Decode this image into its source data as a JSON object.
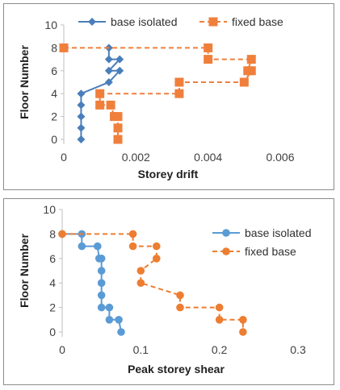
{
  "chart_data": [
    {
      "type": "line",
      "xlabel": "Storey drift",
      "ylabel": "Floor Number",
      "xlim": [
        0,
        0.006
      ],
      "ylim": [
        0,
        10
      ],
      "xticks": [
        "0",
        "0.002",
        "0.004",
        "0.006"
      ],
      "yticks": [
        "0",
        "2",
        "4",
        "6",
        "8",
        "10"
      ],
      "grid": false,
      "legend_position": "top-right",
      "series": [
        {
          "name": "base isolated",
          "color": "#4a7ebb",
          "marker": "diamond",
          "line": "solid",
          "points": [
            [
              0.00125,
              8
            ],
            [
              0.00125,
              7
            ],
            [
              0.00155,
              7
            ],
            [
              0.00125,
              6
            ],
            [
              0.00155,
              6
            ],
            [
              0.00125,
              5
            ],
            [
              0.00048,
              4
            ],
            [
              0.00048,
              3
            ],
            [
              0.00048,
              2
            ],
            [
              0.00048,
              1
            ],
            [
              0.00048,
              0
            ]
          ]
        },
        {
          "name": "fixed base",
          "color": "#f07f3c",
          "marker": "square",
          "line": "dashed",
          "points": [
            [
              0,
              8
            ],
            [
              0.004,
              8
            ],
            [
              0.004,
              7
            ],
            [
              0.0052,
              7
            ],
            [
              0.0051,
              6
            ],
            [
              0.0052,
              6
            ],
            [
              0.005,
              5
            ],
            [
              0.0032,
              5
            ],
            [
              0.0032,
              4
            ],
            [
              0.001,
              4
            ],
            [
              0.001,
              3
            ],
            [
              0.0013,
              3
            ],
            [
              0.0014,
              2
            ],
            [
              0.0015,
              2
            ],
            [
              0.0015,
              1
            ],
            [
              0.0015,
              0
            ]
          ]
        }
      ]
    },
    {
      "type": "line",
      "xlabel": "Peak storey shear",
      "ylabel": "Floor Number",
      "xlim": [
        0,
        0.3
      ],
      "ylim": [
        0,
        10
      ],
      "xticks": [
        "0",
        "0.1",
        "0.2",
        "0.3"
      ],
      "yticks": [
        "0",
        "2",
        "4",
        "6",
        "8",
        "10"
      ],
      "grid": false,
      "legend_position": "right",
      "series": [
        {
          "name": "base isolated",
          "color": "#5b9bd5",
          "marker": "circle",
          "line": "solid",
          "points": [
            [
              0,
              8
            ],
            [
              0.025,
              8
            ],
            [
              0.025,
              7
            ],
            [
              0.045,
              7
            ],
            [
              0.047,
              6
            ],
            [
              0.05,
              6
            ],
            [
              0.05,
              5
            ],
            [
              0.05,
              4
            ],
            [
              0.05,
              3
            ],
            [
              0.05,
              2
            ],
            [
              0.06,
              2
            ],
            [
              0.06,
              1
            ],
            [
              0.072,
              1
            ],
            [
              0.075,
              0
            ]
          ]
        },
        {
          "name": "fixed base",
          "color": "#ed7d31",
          "marker": "circle",
          "line": "dashed",
          "points": [
            [
              0,
              8
            ],
            [
              0.09,
              8
            ],
            [
              0.09,
              7
            ],
            [
              0.12,
              7
            ],
            [
              0.12,
              6
            ],
            [
              0.1,
              5
            ],
            [
              0.1,
              4
            ],
            [
              0.15,
              3
            ],
            [
              0.15,
              2
            ],
            [
              0.2,
              2
            ],
            [
              0.2,
              1
            ],
            [
              0.23,
              1
            ],
            [
              0.23,
              0
            ]
          ]
        }
      ]
    }
  ]
}
